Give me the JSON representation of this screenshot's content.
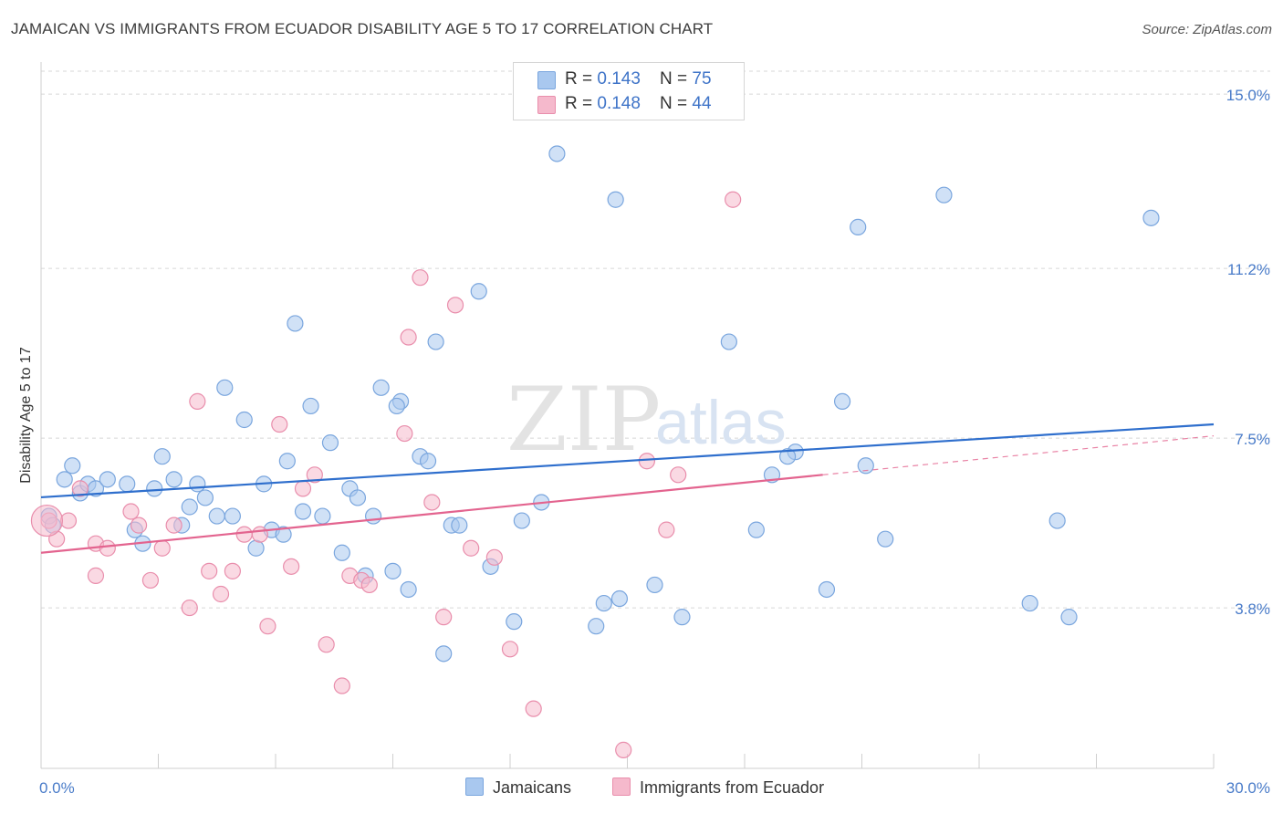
{
  "title": "JAMAICAN VS IMMIGRANTS FROM ECUADOR DISABILITY AGE 5 TO 17 CORRELATION CHART",
  "source": "Source: ZipAtlas.com",
  "legend": {
    "rows": [
      {
        "r_label": "R = ",
        "r_value": "0.143",
        "n_label": "N = ",
        "n_value": "75"
      },
      {
        "r_label": "R = ",
        "r_value": "0.148",
        "n_label": "N = ",
        "n_value": "44"
      }
    ]
  },
  "bottom_legend": {
    "series1": "Jamaicans",
    "series2": "Immigrants from Ecuador"
  },
  "colors": {
    "blue_fill": "#a9c8ef",
    "blue_stroke": "#7aa6de",
    "blue_line": "#2f6fcd",
    "pink_fill": "#f5b9cc",
    "pink_stroke": "#e98eac",
    "pink_line": "#e3648f",
    "axis_text": "#4a7cc9",
    "grid": "#d7d7d7"
  },
  "chart_data": {
    "type": "scatter",
    "title": "JAMAICAN VS IMMIGRANTS FROM ECUADOR DISABILITY AGE 5 TO 17 CORRELATION CHART",
    "xlabel": "",
    "ylabel": "Disability Age 5 to 17",
    "xlim": [
      0,
      30
    ],
    "ylim": [
      0.3,
      15.5
    ],
    "x_tick_labels": [
      "0.0%",
      "30.0%"
    ],
    "y_ticks": [
      3.8,
      7.5,
      11.2,
      15.0
    ],
    "y_tick_labels": [
      "3.8%",
      "7.5%",
      "11.2%",
      "15.0%"
    ],
    "grid": "horizontal dashed",
    "legend_position": "top-center",
    "watermark": "ZIPatlas",
    "series": [
      {
        "name": "Jamaicans",
        "color": "#a9c8ef",
        "r": 0.143,
        "n": 75,
        "trend": {
          "x": [
            0,
            30
          ],
          "y": [
            6.21,
            7.8
          ],
          "dashed_from": null
        },
        "points": [
          [
            0.2,
            5.8
          ],
          [
            0.3,
            5.6
          ],
          [
            0.6,
            6.6
          ],
          [
            0.8,
            6.9
          ],
          [
            1.0,
            6.3
          ],
          [
            1.2,
            6.5
          ],
          [
            1.4,
            6.4
          ],
          [
            1.7,
            6.6
          ],
          [
            2.2,
            6.5
          ],
          [
            2.4,
            5.5
          ],
          [
            2.6,
            5.2
          ],
          [
            2.9,
            6.4
          ],
          [
            3.1,
            7.1
          ],
          [
            3.4,
            6.6
          ],
          [
            3.6,
            5.6
          ],
          [
            3.8,
            6.0
          ],
          [
            4.0,
            6.5
          ],
          [
            4.2,
            6.2
          ],
          [
            4.5,
            5.8
          ],
          [
            4.7,
            8.6
          ],
          [
            4.9,
            5.8
          ],
          [
            5.2,
            7.9
          ],
          [
            5.5,
            5.1
          ],
          [
            5.7,
            6.5
          ],
          [
            5.9,
            5.5
          ],
          [
            6.2,
            5.4
          ],
          [
            6.3,
            7.0
          ],
          [
            6.5,
            10.0
          ],
          [
            6.7,
            5.9
          ],
          [
            6.9,
            8.2
          ],
          [
            7.2,
            5.8
          ],
          [
            7.4,
            7.4
          ],
          [
            7.7,
            5.0
          ],
          [
            7.9,
            6.4
          ],
          [
            8.1,
            6.2
          ],
          [
            8.3,
            4.5
          ],
          [
            8.5,
            5.8
          ],
          [
            8.7,
            8.6
          ],
          [
            9.0,
            4.6
          ],
          [
            9.2,
            8.3
          ],
          [
            9.4,
            4.2
          ],
          [
            9.7,
            7.1
          ],
          [
            9.9,
            7.0
          ],
          [
            10.1,
            9.6
          ],
          [
            10.3,
            2.8
          ],
          [
            10.5,
            5.6
          ],
          [
            10.7,
            5.6
          ],
          [
            11.2,
            10.7
          ],
          [
            11.5,
            4.7
          ],
          [
            12.1,
            3.5
          ],
          [
            12.8,
            6.1
          ],
          [
            13.2,
            13.7
          ],
          [
            14.2,
            3.4
          ],
          [
            14.4,
            3.9
          ],
          [
            14.8,
            4.0
          ],
          [
            14.7,
            12.7
          ],
          [
            15.7,
            4.3
          ],
          [
            16.4,
            3.6
          ],
          [
            17.6,
            9.6
          ],
          [
            18.3,
            5.5
          ],
          [
            18.7,
            6.7
          ],
          [
            19.3,
            7.2
          ],
          [
            20.1,
            4.2
          ],
          [
            20.5,
            8.3
          ],
          [
            20.9,
            12.1
          ],
          [
            21.1,
            6.9
          ],
          [
            21.6,
            5.3
          ],
          [
            23.1,
            12.8
          ],
          [
            25.3,
            3.9
          ],
          [
            26.0,
            5.7
          ],
          [
            26.3,
            3.6
          ],
          [
            28.4,
            12.3
          ],
          [
            19.1,
            7.1
          ],
          [
            12.3,
            5.7
          ],
          [
            9.1,
            8.2
          ]
        ]
      },
      {
        "name": "Immigrants from Ecuador",
        "color": "#f5b9cc",
        "r": 0.148,
        "n": 44,
        "trend": {
          "x": [
            0,
            30
          ],
          "y": [
            5.0,
            7.55
          ],
          "dashed_from": 20.0
        },
        "points": [
          [
            0.2,
            5.7
          ],
          [
            0.4,
            5.3
          ],
          [
            0.7,
            5.7
          ],
          [
            1.0,
            6.4
          ],
          [
            1.4,
            4.5
          ],
          [
            1.4,
            5.2
          ],
          [
            1.7,
            5.1
          ],
          [
            2.3,
            5.9
          ],
          [
            2.5,
            5.6
          ],
          [
            2.8,
            4.4
          ],
          [
            3.1,
            5.1
          ],
          [
            3.4,
            5.6
          ],
          [
            3.8,
            3.8
          ],
          [
            4.0,
            8.3
          ],
          [
            4.3,
            4.6
          ],
          [
            4.6,
            4.1
          ],
          [
            4.9,
            4.6
          ],
          [
            5.2,
            5.4
          ],
          [
            5.6,
            5.4
          ],
          [
            5.8,
            3.4
          ],
          [
            6.1,
            7.8
          ],
          [
            6.4,
            4.7
          ],
          [
            6.7,
            6.4
          ],
          [
            7.0,
            6.7
          ],
          [
            7.3,
            3.0
          ],
          [
            7.7,
            2.1
          ],
          [
            7.9,
            4.5
          ],
          [
            8.2,
            4.4
          ],
          [
            8.4,
            4.3
          ],
          [
            9.3,
            7.6
          ],
          [
            9.4,
            9.7
          ],
          [
            9.7,
            11.0
          ],
          [
            10.0,
            6.1
          ],
          [
            10.3,
            3.6
          ],
          [
            10.6,
            10.4
          ],
          [
            11.0,
            5.1
          ],
          [
            11.6,
            4.9
          ],
          [
            12.0,
            2.9
          ],
          [
            12.6,
            1.6
          ],
          [
            14.9,
            0.7
          ],
          [
            15.5,
            7.0
          ],
          [
            16.0,
            5.5
          ],
          [
            16.3,
            6.7
          ],
          [
            17.7,
            12.7
          ]
        ]
      }
    ]
  }
}
